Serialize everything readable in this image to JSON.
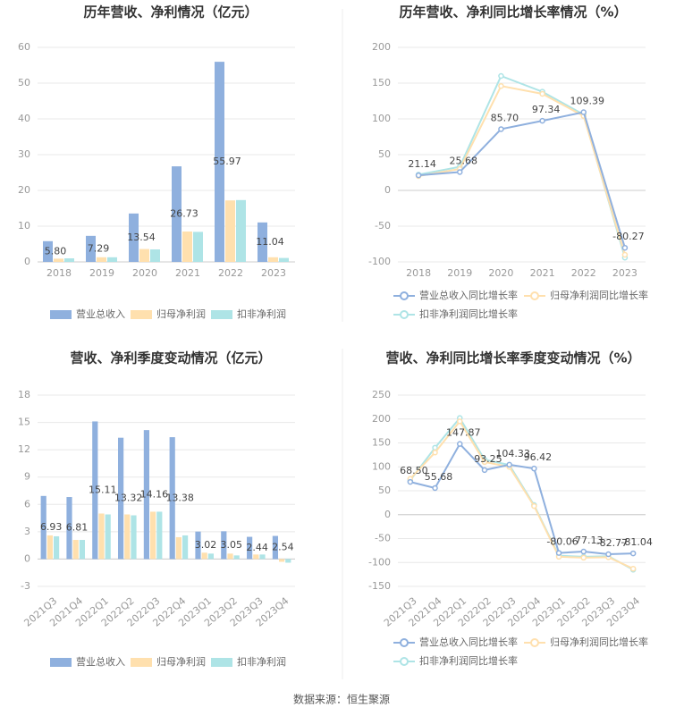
{
  "chart_data": [
    {
      "type": "bar",
      "title": "历年营收、净利情况（亿元）",
      "categories": [
        "2018",
        "2019",
        "2020",
        "2021",
        "2022",
        "2023"
      ],
      "series": [
        {
          "name": "营业总收入",
          "color": "#8fb0de",
          "values": [
            5.8,
            7.29,
            13.54,
            26.73,
            55.97,
            11.04
          ],
          "value_labels": [
            "5.80",
            "7.29",
            "13.54",
            "26.73",
            "55.97",
            "11.04"
          ]
        },
        {
          "name": "归母净利润",
          "color": "#ffe0ae",
          "values": [
            0.9,
            1.3,
            3.6,
            8.5,
            17.2,
            1.3
          ]
        },
        {
          "name": "扣非净利润",
          "color": "#aee4e6",
          "values": [
            1.0,
            1.3,
            3.5,
            8.4,
            17.3,
            1.1
          ]
        }
      ],
      "ylim": [
        0,
        60
      ],
      "yticks": [
        0,
        10,
        20,
        30,
        40,
        50,
        60
      ],
      "grid": true
    },
    {
      "type": "line",
      "title": "历年营收、净利同比增长率情况（%）",
      "categories": [
        "2018",
        "2019",
        "2020",
        "2021",
        "2022",
        "2023"
      ],
      "series": [
        {
          "name": "营业总收入同比增长率",
          "color": "#8fb0de",
          "values": [
            21.14,
            25.68,
            85.7,
            97.34,
            109.39,
            -80.27
          ],
          "value_labels": [
            "21.14",
            "25.68",
            "85.70",
            "97.34",
            "109.39",
            "-80.27"
          ]
        },
        {
          "name": "归母净利润同比增长率",
          "color": "#ffe0ae",
          "values": [
            20,
            30,
            146,
            135,
            104,
            -90
          ]
        },
        {
          "name": "扣非净利润同比增长率",
          "color": "#aee4e6",
          "values": [
            22,
            33,
            160,
            138,
            106,
            -94
          ]
        }
      ],
      "ylim": [
        -100,
        200
      ],
      "yticks": [
        -100,
        -50,
        0,
        50,
        100,
        150,
        200
      ],
      "grid": true
    },
    {
      "type": "bar",
      "title": "营收、净利季度变动情况（亿元）",
      "categories": [
        "2021Q3",
        "2021Q4",
        "2022Q1",
        "2022Q2",
        "2022Q3",
        "2022Q4",
        "2023Q1",
        "2023Q2",
        "2023Q3",
        "2023Q4"
      ],
      "series": [
        {
          "name": "营业总收入",
          "color": "#8fb0de",
          "values": [
            6.93,
            6.81,
            15.11,
            13.32,
            14.16,
            13.38,
            3.02,
            3.05,
            2.44,
            2.54
          ]
        },
        {
          "name": "归母净利润",
          "color": "#ffe0ae",
          "values": [
            2.6,
            2.1,
            5.0,
            4.9,
            5.2,
            2.4,
            0.7,
            0.6,
            0.5,
            -0.3
          ]
        },
        {
          "name": "扣非净利润",
          "color": "#aee4e6",
          "values": [
            2.5,
            2.1,
            4.9,
            4.8,
            5.2,
            2.6,
            0.6,
            0.4,
            0.5,
            -0.4
          ]
        }
      ],
      "ylim": [
        -3,
        18
      ],
      "yticks": [
        -3,
        0,
        3,
        6,
        9,
        12,
        15,
        18
      ],
      "grid": true
    },
    {
      "type": "line",
      "title": "营收、净利同比增长率季度变动情况（%）",
      "categories": [
        "2021Q3",
        "2021Q4",
        "2022Q1",
        "2022Q2",
        "2022Q3",
        "2022Q4",
        "2023Q1",
        "2023Q2",
        "2023Q3",
        "2023Q4"
      ],
      "series": [
        {
          "name": "营业总收入同比增长率",
          "color": "#8fb0de",
          "values": [
            68.5,
            55.68,
            147.87,
            93.25,
            104.33,
            96.42,
            -80.06,
            -77.13,
            -82.77,
            -81.04
          ],
          "value_labels": [
            "68.50",
            "55.68",
            "147.87",
            "93.25",
            "104.33",
            "96.42",
            "-80.06",
            "-77.13",
            "-82.77",
            "-81.04"
          ]
        },
        {
          "name": "归母净利润同比增长率",
          "color": "#ffe0ae",
          "values": [
            75,
            130,
            195,
            110,
            100,
            18,
            -88,
            -90,
            -89,
            -113
          ]
        },
        {
          "name": "扣非净利润同比增长率",
          "color": "#aee4e6",
          "values": [
            72,
            140,
            202,
            115,
            104,
            20,
            -86,
            -88,
            -87,
            -115
          ]
        }
      ],
      "ylim": [
        -150,
        250
      ],
      "yticks": [
        -150,
        -100,
        -50,
        0,
        50,
        100,
        150,
        200,
        250
      ],
      "grid": true
    }
  ],
  "source": "数据来源：恒生聚源"
}
